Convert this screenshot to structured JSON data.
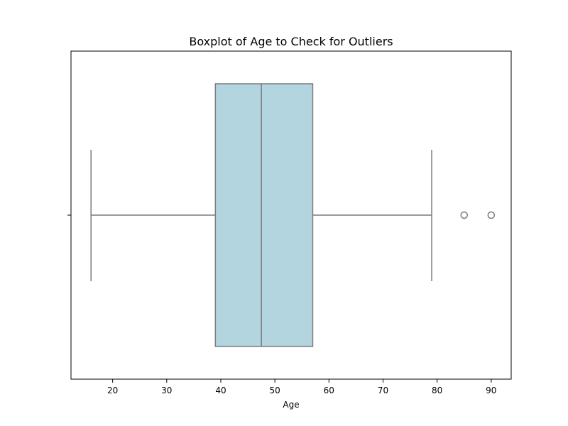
{
  "chart_data": {
    "type": "boxplot",
    "title": "Boxplot of Age to Check for Outliers",
    "xlabel": "Age",
    "ylabel": "",
    "xlim": [
      12.3,
      93.7
    ],
    "xticks": [
      20,
      30,
      40,
      50,
      60,
      70,
      80,
      90
    ],
    "grid": false,
    "box": {
      "whisker_low": 16,
      "q1": 39,
      "median": 47.5,
      "q3": 57,
      "whisker_high": 79,
      "outliers": [
        85,
        90
      ]
    },
    "colors": {
      "box_fill": "#b3d5e0",
      "line": "#7a7a7a",
      "axes": "#000000"
    }
  }
}
